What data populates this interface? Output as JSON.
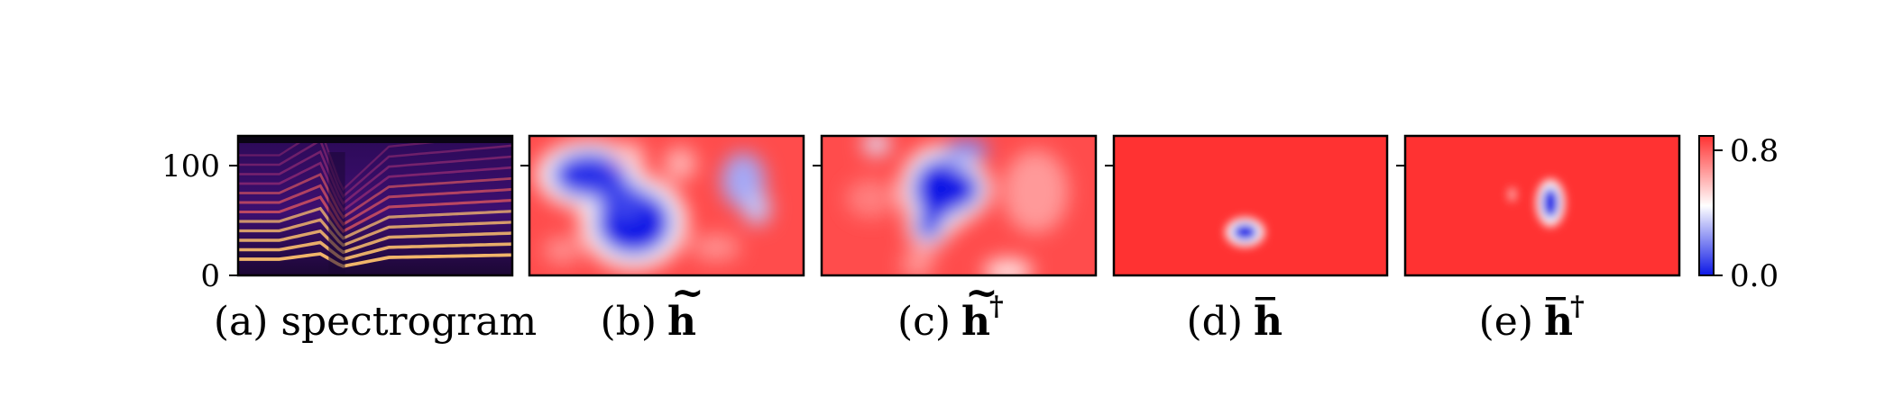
{
  "chart_data": {
    "type": "heatmap",
    "colors": {
      "high": "#ff3232",
      "mid": "#ffffff",
      "low": "#0b16e6"
    },
    "y_axis": {
      "ylim": [
        0,
        128
      ],
      "ticks": [
        0,
        100
      ],
      "tick_labels": [
        "0",
        "100"
      ]
    },
    "colorbar": {
      "vmin": 0.0,
      "vmax": 0.8,
      "tick_labels": [
        "0.8",
        "0.0"
      ]
    },
    "panels": [
      {
        "id": "a",
        "type": "spectrogram",
        "caption_prefix": "(a)",
        "caption_text": "spectrogram",
        "description_colormap": "magma",
        "harmonic_bands": 12
      },
      {
        "id": "b",
        "type": "heatmap",
        "caption_prefix": "(b)",
        "symbol": "h",
        "accent": "tilde",
        "superscript": "",
        "background_value": 0.75,
        "blobs": [
          {
            "cx": 0.38,
            "cy": 0.62,
            "rx": 0.14,
            "ry": 0.24,
            "v": 0.0
          },
          {
            "cx": 0.22,
            "cy": 0.28,
            "rx": 0.14,
            "ry": 0.17,
            "v": 0.05
          },
          {
            "cx": 0.34,
            "cy": 0.46,
            "rx": 0.09,
            "ry": 0.14,
            "v": 0.08
          },
          {
            "cx": 0.78,
            "cy": 0.32,
            "rx": 0.08,
            "ry": 0.2,
            "v": 0.25
          },
          {
            "cx": 0.83,
            "cy": 0.52,
            "rx": 0.05,
            "ry": 0.12,
            "v": 0.3
          },
          {
            "cx": 0.36,
            "cy": 0.14,
            "rx": 0.06,
            "ry": 0.09,
            "v": 0.5
          },
          {
            "cx": 0.55,
            "cy": 0.2,
            "rx": 0.06,
            "ry": 0.12,
            "v": 0.55
          },
          {
            "cx": 0.12,
            "cy": 0.82,
            "rx": 0.07,
            "ry": 0.1,
            "v": 0.62
          },
          {
            "cx": 0.68,
            "cy": 0.8,
            "rx": 0.09,
            "ry": 0.1,
            "v": 0.62
          }
        ]
      },
      {
        "id": "c",
        "type": "heatmap",
        "caption_prefix": "(c)",
        "symbol": "h",
        "accent": "tilde",
        "superscript": "†",
        "background_value": 0.75,
        "blobs": [
          {
            "cx": 0.43,
            "cy": 0.38,
            "rx": 0.1,
            "ry": 0.22,
            "v": 0.0
          },
          {
            "cx": 0.5,
            "cy": 0.38,
            "rx": 0.08,
            "ry": 0.15,
            "v": 0.0
          },
          {
            "cx": 0.39,
            "cy": 0.65,
            "rx": 0.05,
            "ry": 0.1,
            "v": 0.05
          },
          {
            "cx": 0.53,
            "cy": 0.1,
            "rx": 0.08,
            "ry": 0.08,
            "v": 0.2
          },
          {
            "cx": 0.2,
            "cy": 0.06,
            "rx": 0.05,
            "ry": 0.08,
            "v": 0.35
          },
          {
            "cx": 0.68,
            "cy": 0.97,
            "rx": 0.09,
            "ry": 0.09,
            "v": 0.45
          },
          {
            "cx": 0.35,
            "cy": 0.92,
            "rx": 0.06,
            "ry": 0.1,
            "v": 0.6
          },
          {
            "cx": 0.78,
            "cy": 0.4,
            "rx": 0.12,
            "ry": 0.3,
            "v": 0.6
          },
          {
            "cx": 0.18,
            "cy": 0.45,
            "rx": 0.09,
            "ry": 0.14,
            "v": 0.65
          }
        ]
      },
      {
        "id": "d",
        "type": "heatmap",
        "caption_prefix": "(d)",
        "symbol": "h",
        "accent": "bar",
        "superscript": "",
        "background_value": 0.8,
        "blobs": [
          {
            "cx": 0.48,
            "cy": 0.69,
            "rx": 0.045,
            "ry": 0.06,
            "v": 0.0
          }
        ]
      },
      {
        "id": "e",
        "type": "heatmap",
        "caption_prefix": "(e)",
        "symbol": "h",
        "accent": "bar",
        "superscript": "†",
        "background_value": 0.8,
        "blobs": [
          {
            "cx": 0.53,
            "cy": 0.48,
            "rx": 0.03,
            "ry": 0.11,
            "v": 0.0
          },
          {
            "cx": 0.39,
            "cy": 0.42,
            "rx": 0.015,
            "ry": 0.05,
            "v": 0.55
          }
        ]
      }
    ]
  }
}
